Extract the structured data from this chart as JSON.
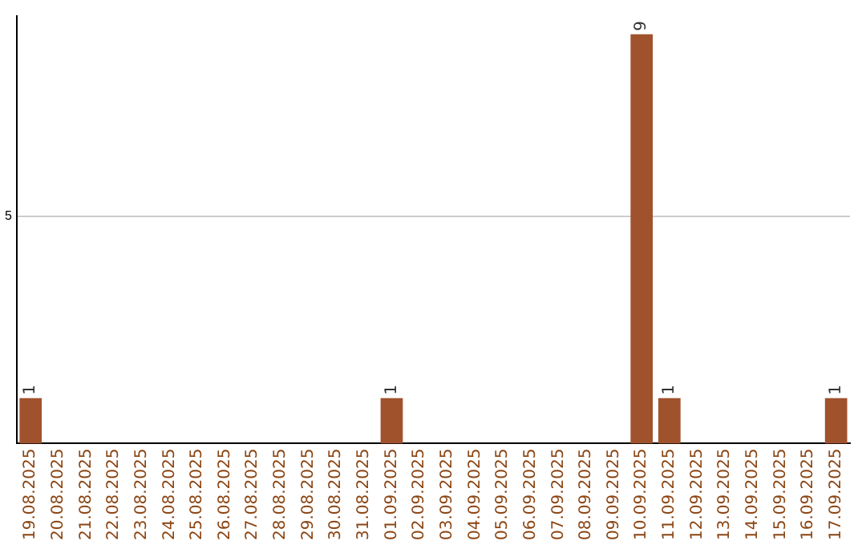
{
  "chart_data": {
    "type": "bar",
    "categories": [
      "19.08.2025",
      "20.08.2025",
      "21.08.2025",
      "22.08.2025",
      "23.08.2025",
      "24.08.2025",
      "25.08.2025",
      "26.08.2025",
      "27.08.2025",
      "28.08.2025",
      "29.08.2025",
      "30.08.2025",
      "31.08.2025",
      "01.09.2025",
      "02.09.2025",
      "03.09.2025",
      "04.09.2025",
      "05.09.2025",
      "06.09.2025",
      "07.09.2025",
      "08.09.2025",
      "09.09.2025",
      "10.09.2025",
      "11.09.2025",
      "12.09.2025",
      "13.09.2025",
      "14.09.2025",
      "15.09.2025",
      "16.09.2025",
      "17.09.2025"
    ],
    "values": [
      1,
      0,
      0,
      0,
      0,
      0,
      0,
      0,
      0,
      0,
      0,
      0,
      0,
      1,
      0,
      0,
      0,
      0,
      0,
      0,
      0,
      0,
      9,
      1,
      0,
      0,
      0,
      0,
      0,
      1
    ],
    "value_labels": [
      "1",
      null,
      null,
      null,
      null,
      null,
      null,
      null,
      null,
      null,
      null,
      null,
      null,
      "1",
      null,
      null,
      null,
      null,
      null,
      null,
      null,
      null,
      "9",
      "1",
      null,
      null,
      null,
      null,
      null,
      "1"
    ],
    "color": "#a0522d",
    "ylim": [
      0,
      9.4
    ],
    "yticks": [
      5
    ],
    "grid": "y"
  }
}
